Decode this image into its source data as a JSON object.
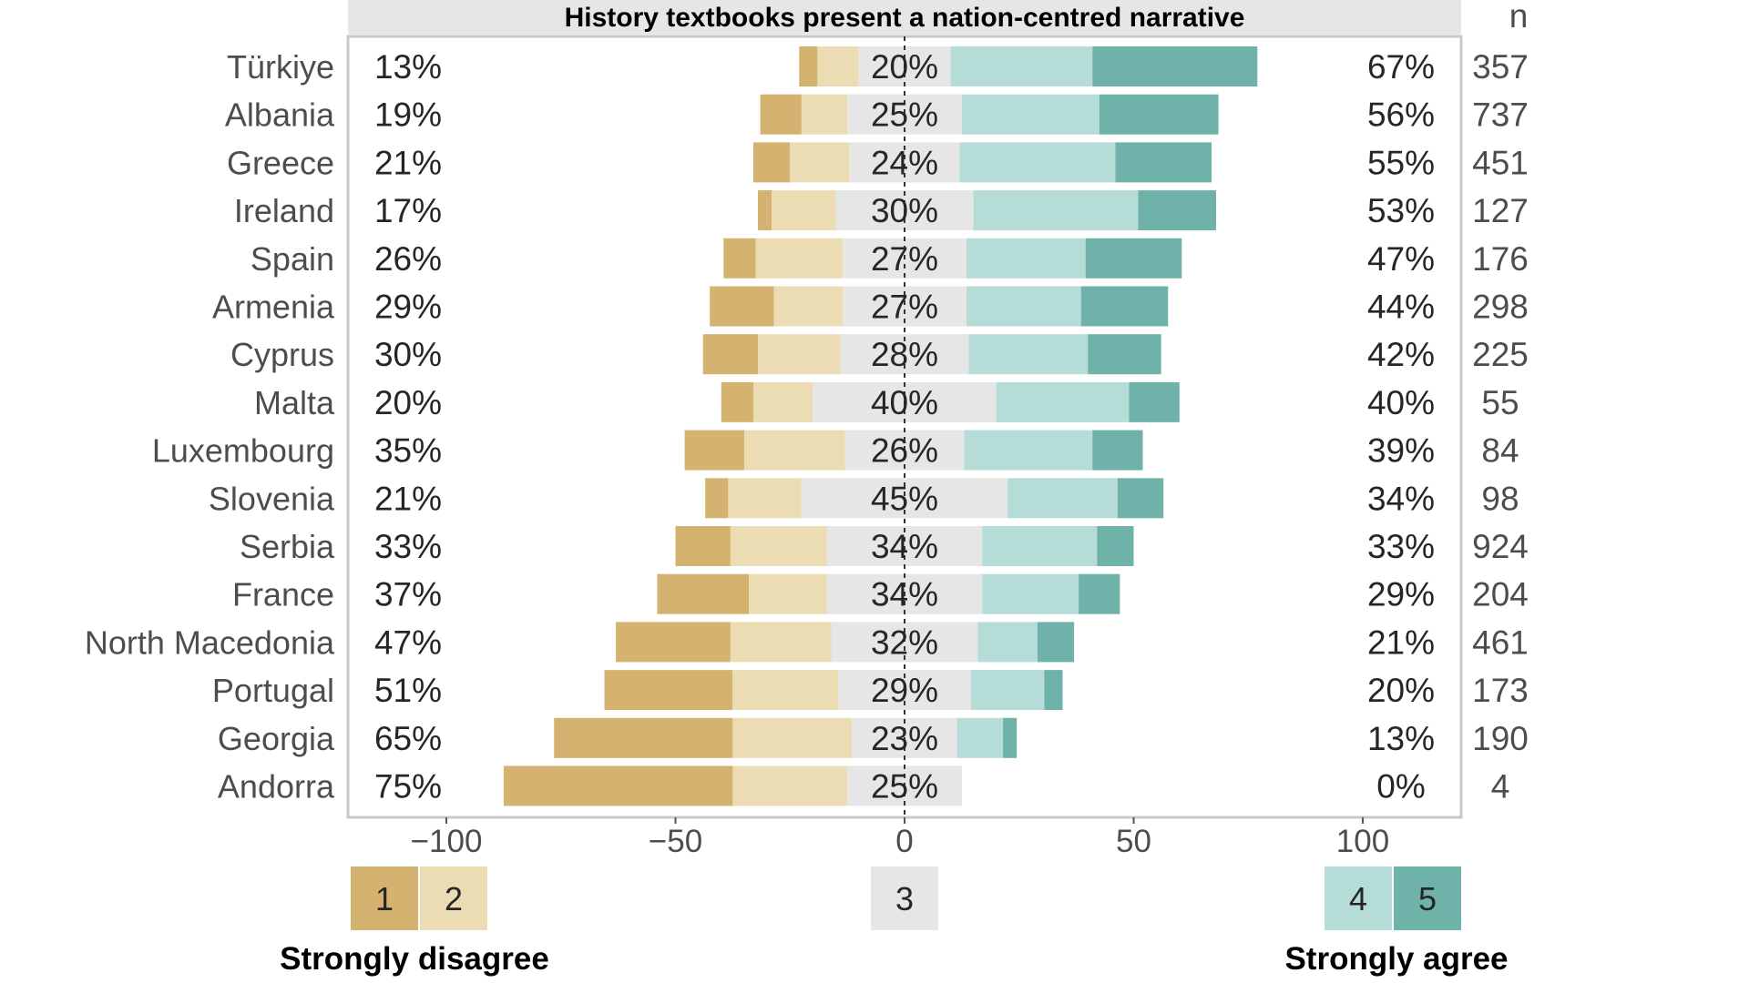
{
  "chart_data": {
    "type": "bar",
    "subtype": "diverging-stacked-likert",
    "title": "History textbooks present a nation-centred narrative",
    "n_header": "n",
    "xlim": [
      -120,
      120
    ],
    "x_ticks": [
      -100,
      -50,
      0,
      50,
      100
    ],
    "x_tick_labels": [
      "−100",
      "−50",
      "0",
      "50",
      "100"
    ],
    "grid": false,
    "legend_position": "bottom",
    "categories": [
      "Türkiye",
      "Albania",
      "Greece",
      "Ireland",
      "Spain",
      "Armenia",
      "Cyprus",
      "Malta",
      "Luxembourg",
      "Slovenia",
      "Serbia",
      "France",
      "North Macedonia",
      "Portugal",
      "Georgia",
      "Andorra"
    ],
    "series": [
      {
        "name": "1",
        "values": [
          4,
          9,
          8,
          3,
          7,
          14,
          12,
          7,
          13,
          5,
          12,
          20,
          25,
          28,
          39,
          50
        ]
      },
      {
        "name": "2",
        "values": [
          9,
          10,
          13,
          14,
          19,
          15,
          18,
          13,
          22,
          16,
          21,
          17,
          22,
          23,
          26,
          25
        ]
      },
      {
        "name": "3",
        "values": [
          20,
          25,
          24,
          30,
          27,
          27,
          28,
          40,
          26,
          45,
          34,
          34,
          32,
          29,
          23,
          25
        ]
      },
      {
        "name": "4",
        "values": [
          31,
          30,
          34,
          36,
          26,
          25,
          26,
          29,
          28,
          24,
          25,
          21,
          13,
          16,
          10,
          0
        ]
      },
      {
        "name": "5",
        "values": [
          36,
          26,
          21,
          17,
          21,
          19,
          16,
          11,
          11,
          10,
          8,
          9,
          8,
          4,
          3,
          0
        ]
      }
    ],
    "disagree_labels": [
      "13%",
      "19%",
      "21%",
      "17%",
      "26%",
      "29%",
      "30%",
      "20%",
      "35%",
      "21%",
      "33%",
      "37%",
      "47%",
      "51%",
      "65%",
      "75%"
    ],
    "neutral_labels": [
      "20%",
      "25%",
      "24%",
      "30%",
      "27%",
      "27%",
      "28%",
      "40%",
      "26%",
      "45%",
      "34%",
      "34%",
      "32%",
      "29%",
      "23%",
      "25%"
    ],
    "agree_labels": [
      "67%",
      "56%",
      "55%",
      "53%",
      "47%",
      "44%",
      "42%",
      "40%",
      "39%",
      "34%",
      "33%",
      "29%",
      "21%",
      "20%",
      "13%",
      "0%"
    ],
    "n_values": [
      "357",
      "737",
      "451",
      "127",
      "176",
      "298",
      "225",
      "55",
      "84",
      "98",
      "924",
      "204",
      "461",
      "173",
      "190",
      "4"
    ],
    "legend": {
      "items": [
        "1",
        "2",
        "3",
        "4",
        "5"
      ],
      "left_caption": "Strongly disagree",
      "right_caption": "Strongly agree"
    },
    "colors": {
      "1": "#d4b26f",
      "2": "#ebdcb4",
      "3": "#e6e6e6",
      "4": "#b5dcd6",
      "5": "#6fb2aa",
      "title_strip": "#e6e6e6",
      "frame": "#c8c8c8"
    }
  }
}
